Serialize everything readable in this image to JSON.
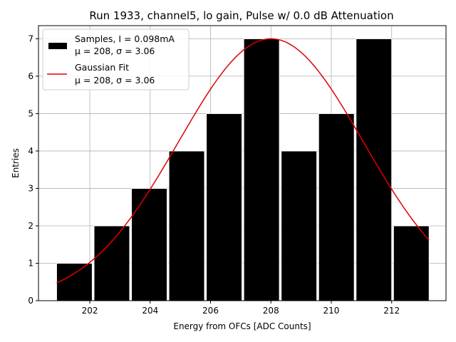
{
  "chart_data": {
    "type": "bar",
    "title": "Run 1933, channel5, lo gain, Pulse w/ 0.0 dB Attenuation",
    "xlabel": "Energy from OFCs [ADC Counts]",
    "ylabel": "Entries",
    "xlim": [
      200.3,
      213.8
    ],
    "ylim": [
      0,
      7.35
    ],
    "grid": true,
    "x_ticks": [
      202,
      204,
      206,
      208,
      210,
      212
    ],
    "y_ticks": [
      0,
      1,
      2,
      3,
      4,
      5,
      6,
      7
    ],
    "bins": [
      {
        "left": 200.9,
        "right": 202.08,
        "count": 1
      },
      {
        "left": 202.14,
        "right": 203.32,
        "count": 2
      },
      {
        "left": 203.38,
        "right": 204.56,
        "count": 3
      },
      {
        "left": 204.62,
        "right": 205.8,
        "count": 4
      },
      {
        "left": 205.86,
        "right": 207.04,
        "count": 5
      },
      {
        "left": 207.1,
        "right": 208.28,
        "count": 7
      },
      {
        "left": 208.34,
        "right": 209.52,
        "count": 4
      },
      {
        "left": 209.58,
        "right": 210.76,
        "count": 5
      },
      {
        "left": 210.82,
        "right": 212.0,
        "count": 7
      },
      {
        "left": 212.06,
        "right": 213.24,
        "count": 2
      }
    ],
    "fit": {
      "name": "Gaussian Fit",
      "mu": 208.0,
      "sigma": 3.06,
      "amplitude": 7.0,
      "x_range": [
        200.9,
        213.24
      ],
      "color": "#e00000"
    },
    "bar_color": "#000000",
    "bar_edge_color": "#ffffff",
    "legend": {
      "location": "upper-left",
      "entries": [
        {
          "kind": "patch",
          "lines": [
            "Samples, I = 0.098mA",
            "μ = 208, σ = 3.06"
          ]
        },
        {
          "kind": "line",
          "lines": [
            "Gaussian Fit",
            "μ = 208, σ = 3.06"
          ]
        }
      ]
    }
  }
}
